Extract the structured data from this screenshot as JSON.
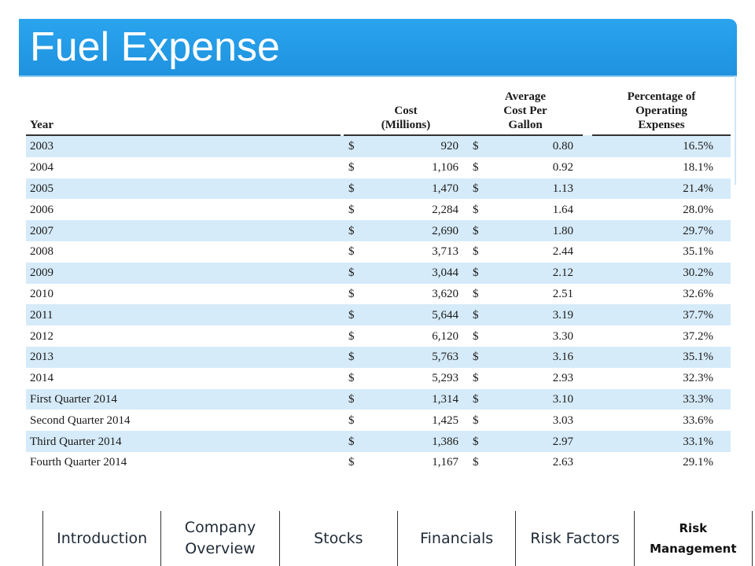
{
  "slide": {
    "title": "Fuel Expense"
  },
  "table": {
    "headers": {
      "year": "Year",
      "cost": "Cost\n(Millions)",
      "avg": "Average\nCost Per\nGallon",
      "pct": "Percentage of\nOperating\nExpenses"
    },
    "currency_symbol": "$",
    "rows": [
      {
        "year": "2003",
        "cost": "920",
        "avg": "0.80",
        "pct": "16.5%"
      },
      {
        "year": "2004",
        "cost": "1,106",
        "avg": "0.92",
        "pct": "18.1%"
      },
      {
        "year": "2005",
        "cost": "1,470",
        "avg": "1.13",
        "pct": "21.4%"
      },
      {
        "year": "2006",
        "cost": "2,284",
        "avg": "1.64",
        "pct": "28.0%"
      },
      {
        "year": "2007",
        "cost": "2,690",
        "avg": "1.80",
        "pct": "29.7%"
      },
      {
        "year": "2008",
        "cost": "3,713",
        "avg": "2.44",
        "pct": "35.1%"
      },
      {
        "year": "2009",
        "cost": "3,044",
        "avg": "2.12",
        "pct": "30.2%"
      },
      {
        "year": "2010",
        "cost": "3,620",
        "avg": "2.51",
        "pct": "32.6%"
      },
      {
        "year": "2011",
        "cost": "5,644",
        "avg": "3.19",
        "pct": "37.7%"
      },
      {
        "year": "2012",
        "cost": "6,120",
        "avg": "3.30",
        "pct": "37.2%"
      },
      {
        "year": "2013",
        "cost": "5,763",
        "avg": "3.16",
        "pct": "35.1%"
      },
      {
        "year": "2014",
        "cost": "5,293",
        "avg": "2.93",
        "pct": "32.3%"
      },
      {
        "year": "First Quarter 2014",
        "cost": "1,314",
        "avg": "3.10",
        "pct": "33.3%"
      },
      {
        "year": "Second Quarter 2014",
        "cost": "1,425",
        "avg": "3.03",
        "pct": "33.6%"
      },
      {
        "year": "Third Quarter 2014",
        "cost": "1,386",
        "avg": "2.97",
        "pct": "33.1%"
      },
      {
        "year": "Fourth Quarter 2014",
        "cost": "1,167",
        "avg": "2.63",
        "pct": "29.1%"
      }
    ]
  },
  "nav": {
    "items": [
      {
        "label": "Introduction",
        "active": false
      },
      {
        "label": "Company\nOverview",
        "active": false
      },
      {
        "label": "Stocks",
        "active": false
      },
      {
        "label": "Financials",
        "active": false
      },
      {
        "label": "Risk Factors",
        "active": false
      },
      {
        "label": "Risk\nManagement",
        "active": true
      }
    ]
  },
  "colors": {
    "title_bar": "#1f92de",
    "row_stripe": "#d6ebf9"
  }
}
